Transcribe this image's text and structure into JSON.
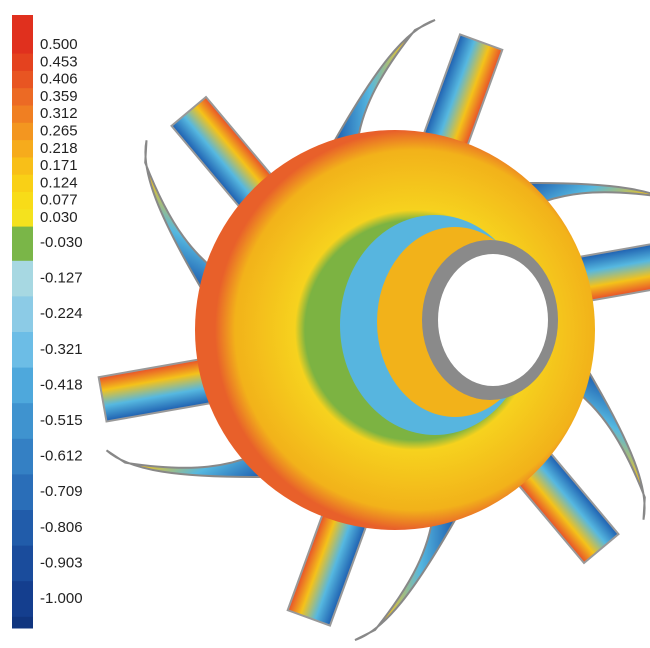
{
  "legend": {
    "labels": [
      "0.500",
      "0.453",
      "0.406",
      "0.359",
      "0.312",
      "0.265",
      "0.218",
      "0.171",
      "0.124",
      "0.077",
      "0.030",
      "-0.030",
      "-0.127",
      "-0.224",
      "-0.321",
      "-0.418",
      "-0.515",
      "-0.612",
      "-0.709",
      "-0.806",
      "-0.903",
      "-1.000"
    ]
  }
}
